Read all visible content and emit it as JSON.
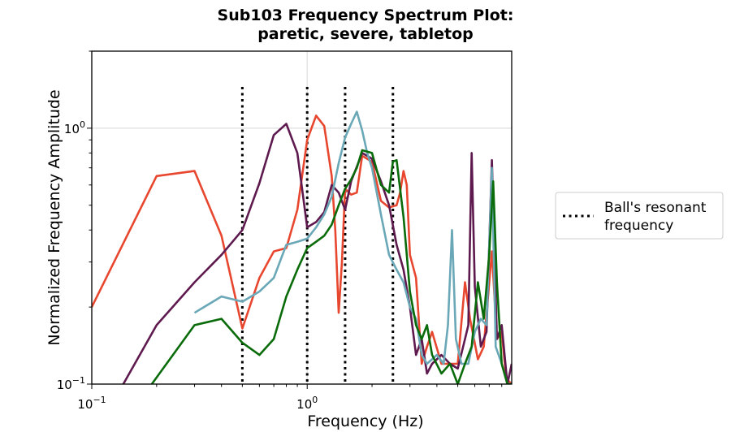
{
  "chart_data": {
    "type": "line",
    "title": [
      "Sub103 Frequency Spectrum Plot:",
      "paretic, severe, tabletop"
    ],
    "xlabel": "Frequency (Hz)",
    "ylabel": "Normalized Frequency Amplitude",
    "x_scale": "log",
    "y_scale": "log",
    "xlim": [
      0.1,
      8.9
    ],
    "ylim": [
      0.1,
      2.0
    ],
    "x_ticks": [
      {
        "value": 0.1,
        "base": "10",
        "exp": "−1"
      },
      {
        "value": 1.0,
        "base": "10",
        "exp": "0"
      }
    ],
    "y_ticks": [
      {
        "value": 0.1,
        "base": "10",
        "exp": "−1"
      },
      {
        "value": 1.0,
        "base": "10",
        "exp": "0"
      }
    ],
    "grid": true,
    "resonant_lines": {
      "label": "Ball's resonant frequency",
      "legend_lines": [
        "Ball's resonant",
        "frequency"
      ],
      "x": [
        0.5,
        1.0,
        1.5,
        2.5
      ],
      "y_top": 1.45,
      "color": "#000000"
    },
    "legend_position": "center-right, outside plot",
    "series": [
      {
        "color": "#e8472f",
        "points": [
          [
            0.1,
            0.2
          ],
          [
            0.2,
            0.65
          ],
          [
            0.3,
            0.68
          ],
          [
            0.4,
            0.38
          ],
          [
            0.5,
            0.165
          ],
          [
            0.6,
            0.26
          ],
          [
            0.7,
            0.33
          ],
          [
            0.8,
            0.34
          ],
          [
            0.9,
            0.48
          ],
          [
            1.0,
            0.9
          ],
          [
            1.1,
            1.12
          ],
          [
            1.2,
            1.02
          ],
          [
            1.3,
            0.65
          ],
          [
            1.35,
            0.4
          ],
          [
            1.4,
            0.19
          ],
          [
            1.45,
            0.3
          ],
          [
            1.5,
            0.58
          ],
          [
            1.6,
            0.55
          ],
          [
            1.7,
            0.56
          ],
          [
            1.8,
            0.78
          ],
          [
            2.0,
            0.74
          ],
          [
            2.2,
            0.52
          ],
          [
            2.4,
            0.49
          ],
          [
            2.6,
            0.5
          ],
          [
            2.7,
            0.56
          ],
          [
            2.8,
            0.68
          ],
          [
            2.9,
            0.6
          ],
          [
            3.0,
            0.32
          ],
          [
            3.2,
            0.26
          ],
          [
            3.4,
            0.12
          ],
          [
            3.6,
            0.14
          ],
          [
            3.8,
            0.16
          ],
          [
            4.2,
            0.12
          ],
          [
            4.6,
            0.12
          ],
          [
            5.0,
            0.12
          ],
          [
            5.4,
            0.25
          ],
          [
            5.7,
            0.18
          ],
          [
            6.2,
            0.125
          ],
          [
            6.6,
            0.14
          ],
          [
            7.2,
            0.33
          ],
          [
            7.6,
            0.15
          ],
          [
            8.0,
            0.16
          ],
          [
            8.4,
            0.105
          ],
          [
            8.9,
            0.1
          ]
        ]
      },
      {
        "color": "#5e1a4e",
        "points": [
          [
            0.14,
            0.1
          ],
          [
            0.2,
            0.17
          ],
          [
            0.3,
            0.25
          ],
          [
            0.4,
            0.32
          ],
          [
            0.5,
            0.4
          ],
          [
            0.6,
            0.61
          ],
          [
            0.7,
            0.94
          ],
          [
            0.8,
            1.04
          ],
          [
            0.9,
            0.8
          ],
          [
            1.0,
            0.41
          ],
          [
            1.1,
            0.43
          ],
          [
            1.2,
            0.47
          ],
          [
            1.3,
            0.6
          ],
          [
            1.4,
            0.56
          ],
          [
            1.5,
            0.48
          ],
          [
            1.6,
            0.62
          ],
          [
            1.8,
            0.8
          ],
          [
            2.0,
            0.76
          ],
          [
            2.2,
            0.62
          ],
          [
            2.4,
            0.5
          ],
          [
            2.6,
            0.35
          ],
          [
            2.8,
            0.28
          ],
          [
            3.0,
            0.2
          ],
          [
            3.2,
            0.13
          ],
          [
            3.4,
            0.15
          ],
          [
            3.6,
            0.11
          ],
          [
            3.8,
            0.12
          ],
          [
            4.2,
            0.13
          ],
          [
            4.6,
            0.12
          ],
          [
            5.0,
            0.115
          ],
          [
            5.4,
            0.15
          ],
          [
            5.6,
            0.17
          ],
          [
            5.8,
            0.8
          ],
          [
            6.0,
            0.24
          ],
          [
            6.4,
            0.14
          ],
          [
            6.8,
            0.16
          ],
          [
            7.2,
            0.75
          ],
          [
            7.6,
            0.15
          ],
          [
            8.0,
            0.17
          ],
          [
            8.5,
            0.1
          ],
          [
            8.9,
            0.12
          ]
        ]
      },
      {
        "color": "#6aa8b8",
        "points": [
          [
            0.3,
            0.19
          ],
          [
            0.4,
            0.22
          ],
          [
            0.5,
            0.21
          ],
          [
            0.6,
            0.23
          ],
          [
            0.7,
            0.26
          ],
          [
            0.8,
            0.35
          ],
          [
            0.9,
            0.36
          ],
          [
            1.0,
            0.37
          ],
          [
            1.1,
            0.41
          ],
          [
            1.2,
            0.46
          ],
          [
            1.3,
            0.54
          ],
          [
            1.4,
            0.73
          ],
          [
            1.5,
            0.92
          ],
          [
            1.6,
            1.04
          ],
          [
            1.7,
            1.16
          ],
          [
            1.8,
            0.98
          ],
          [
            1.9,
            0.8
          ],
          [
            2.0,
            0.7
          ],
          [
            2.2,
            0.46
          ],
          [
            2.4,
            0.32
          ],
          [
            2.6,
            0.28
          ],
          [
            2.8,
            0.25
          ],
          [
            3.0,
            0.2
          ],
          [
            3.2,
            0.18
          ],
          [
            3.4,
            0.13
          ],
          [
            3.6,
            0.12
          ],
          [
            4.0,
            0.13
          ],
          [
            4.3,
            0.12
          ],
          [
            4.5,
            0.17
          ],
          [
            4.7,
            0.4
          ],
          [
            4.9,
            0.15
          ],
          [
            5.2,
            0.12
          ],
          [
            5.6,
            0.12
          ],
          [
            6.0,
            0.16
          ],
          [
            6.4,
            0.18
          ],
          [
            6.8,
            0.17
          ],
          [
            7.2,
            0.7
          ],
          [
            7.5,
            0.14
          ],
          [
            8.0,
            0.12
          ],
          [
            8.5,
            0.1
          ],
          [
            8.9,
            0.1
          ]
        ]
      },
      {
        "color": "#0a6b0a",
        "points": [
          [
            0.19,
            0.1
          ],
          [
            0.3,
            0.17
          ],
          [
            0.4,
            0.18
          ],
          [
            0.5,
            0.145
          ],
          [
            0.6,
            0.13
          ],
          [
            0.7,
            0.15
          ],
          [
            0.8,
            0.22
          ],
          [
            0.9,
            0.28
          ],
          [
            1.0,
            0.34
          ],
          [
            1.1,
            0.36
          ],
          [
            1.2,
            0.38
          ],
          [
            1.3,
            0.42
          ],
          [
            1.4,
            0.5
          ],
          [
            1.5,
            0.58
          ],
          [
            1.6,
            0.63
          ],
          [
            1.7,
            0.7
          ],
          [
            1.8,
            0.82
          ],
          [
            2.0,
            0.8
          ],
          [
            2.2,
            0.6
          ],
          [
            2.4,
            0.56
          ],
          [
            2.5,
            0.74
          ],
          [
            2.6,
            0.75
          ],
          [
            2.8,
            0.45
          ],
          [
            3.0,
            0.23
          ],
          [
            3.2,
            0.17
          ],
          [
            3.4,
            0.15
          ],
          [
            3.6,
            0.17
          ],
          [
            3.8,
            0.13
          ],
          [
            4.2,
            0.11
          ],
          [
            4.6,
            0.12
          ],
          [
            5.0,
            0.1
          ],
          [
            5.4,
            0.12
          ],
          [
            5.8,
            0.14
          ],
          [
            6.2,
            0.25
          ],
          [
            6.6,
            0.18
          ],
          [
            7.0,
            0.32
          ],
          [
            7.3,
            0.62
          ],
          [
            7.6,
            0.25
          ],
          [
            8.0,
            0.12
          ],
          [
            8.5,
            0.1
          ],
          [
            8.9,
            0.1
          ]
        ]
      }
    ]
  }
}
